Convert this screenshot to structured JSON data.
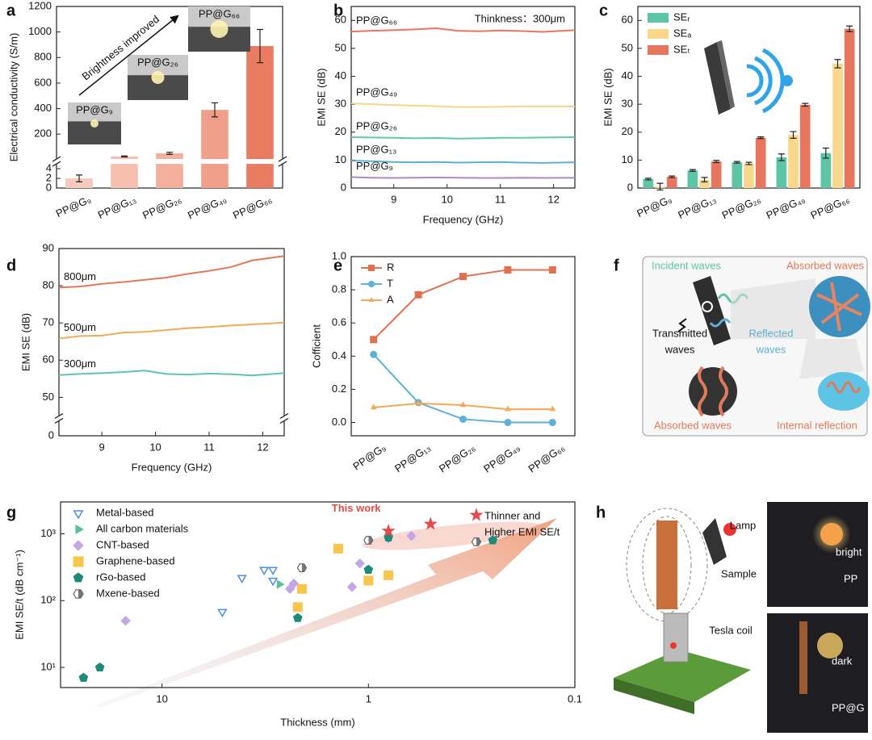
{
  "chart_data": [
    {
      "type": "bar",
      "panel": "a",
      "ylabel": "Electrical conductivity (S/m)",
      "categories": [
        "PP@G₉",
        "PP@G₁₃",
        "PP@G₂₆",
        "PP@G₄₉",
        "PP@G₆₆"
      ],
      "values": [
        2,
        25,
        50,
        390,
        890
      ],
      "errors": [
        0.7,
        4,
        8,
        55,
        130
      ],
      "colors": [
        "#f8cabd",
        "#f6bfae",
        "#f3b19d",
        "#f0a08a",
        "#e97b60"
      ],
      "y_segments": [
        {
          "lim": [
            0,
            5
          ],
          "ticks": [
            0,
            2,
            4
          ]
        },
        {
          "lim": [
            5,
            1200
          ],
          "ticks": [
            200,
            400,
            600,
            800,
            1000,
            1200
          ]
        }
      ],
      "xtick_rotation": 25,
      "insets": [
        "PP@G₉",
        "PP@G₂₆",
        "PP@G₆₆"
      ],
      "annotation": "Brightness improved"
    },
    {
      "type": "line",
      "panel": "b",
      "xlabel": "Frequency (GHz)",
      "ylabel": "EMI SE (dB)",
      "annotation": "Thinkness：300μm",
      "x": [
        8.2,
        8.6,
        9.0,
        9.4,
        9.8,
        10.2,
        10.6,
        11.0,
        11.4,
        11.8,
        12.4
      ],
      "xlim": [
        8.2,
        12.4
      ],
      "xticks": [
        9,
        10,
        11,
        12
      ],
      "ylim": [
        0,
        65
      ],
      "yticks": [
        0,
        10,
        20,
        30,
        40,
        50,
        60
      ],
      "line_labels": true,
      "series": [
        {
          "name": "PP@G₆₆",
          "color": "#e8765e",
          "values": [
            56,
            56.3,
            56.5,
            56.8,
            57.2,
            56.3,
            56.1,
            56.4,
            56.2,
            55.9,
            56.5
          ]
        },
        {
          "name": "PP@G₄₉",
          "color": "#f5d58a",
          "values": [
            30.3,
            30,
            29.7,
            29.5,
            29.3,
            29,
            29,
            29.1,
            29.2,
            29.2,
            29.2
          ]
        },
        {
          "name": "PP@G₂₆",
          "color": "#62c6a9",
          "values": [
            18.2,
            18.1,
            18,
            17.8,
            17.9,
            17.7,
            17.8,
            18,
            18,
            18.1,
            18.2
          ]
        },
        {
          "name": "PP@G₁₃",
          "color": "#5eaed6",
          "values": [
            9.8,
            9.6,
            9.3,
            9.2,
            9.3,
            9.1,
            9.2,
            9.3,
            9.1,
            9,
            9.2
          ]
        },
        {
          "name": "PP@G₉",
          "color": "#a88ad2",
          "values": [
            3.9,
            3.7,
            3.6,
            3.7,
            3.8,
            3.7,
            3.6,
            3.6,
            3.7,
            3.6,
            3.7
          ]
        }
      ]
    },
    {
      "type": "bar",
      "panel": "c",
      "ylabel": "EMI SE (dB)",
      "categories": [
        "PP@G₉",
        "PP@G₁₃",
        "PP@G₂₆",
        "PP@G₄₉",
        "PP@G₆₆"
      ],
      "ylim": [
        0,
        65
      ],
      "yticks": [
        0,
        10,
        20,
        30,
        40,
        50,
        60
      ],
      "legend": "upper left",
      "xtick_rotation": 25,
      "series": [
        {
          "name": "SEᵣ",
          "color": "#5ec4a6",
          "values": [
            3.2,
            6.3,
            9.2,
            11,
            12.5
          ],
          "errors": [
            0.3,
            0.3,
            0.3,
            1.2,
            1.8
          ]
        },
        {
          "name": "SEₐ",
          "color": "#f8d88a",
          "values": [
            0.5,
            3,
            8.8,
            19,
            44.5
          ],
          "errors": [
            1.2,
            0.8,
            0.4,
            1.2,
            1.5
          ]
        },
        {
          "name": "SEₜ",
          "color": "#e8765e",
          "values": [
            4,
            9.5,
            18,
            29.8,
            57
          ],
          "errors": [
            0.3,
            0.4,
            0.3,
            0.5,
            1
          ]
        }
      ]
    },
    {
      "type": "line",
      "panel": "d",
      "xlabel": "Frequency (GHz)",
      "ylabel": "EMI SE (dB)",
      "x": [
        8.2,
        8.6,
        9.0,
        9.4,
        9.8,
        10.2,
        10.6,
        11.0,
        11.4,
        11.8,
        12.4
      ],
      "xlim": [
        8.2,
        12.4
      ],
      "xticks": [
        9,
        10,
        11,
        12
      ],
      "y_segments": [
        {
          "lim": [
            0,
            5
          ],
          "ticks": [
            0
          ]
        },
        {
          "lim": [
            45,
            90
          ],
          "ticks": [
            50,
            60,
            70,
            80,
            90
          ]
        }
      ],
      "line_labels": true,
      "series": [
        {
          "name": "800μm",
          "color": "#e3775a",
          "values": [
            79.5,
            79.8,
            80.5,
            81,
            81.6,
            82.2,
            83.2,
            84,
            85,
            86.8,
            88
          ]
        },
        {
          "name": "500μm",
          "color": "#f0aa5a",
          "values": [
            65.8,
            66.5,
            66.6,
            67.4,
            67.6,
            68.1,
            68.6,
            68.9,
            69.3,
            69.6,
            70.1
          ]
        },
        {
          "name": "300μm",
          "color": "#5ec4b5",
          "values": [
            56,
            56.3,
            56.5,
            56.8,
            57.2,
            56.3,
            56.1,
            56.4,
            56.2,
            55.9,
            56.5
          ]
        }
      ]
    },
    {
      "type": "line",
      "panel": "e",
      "ylabel": "Cofficient",
      "categories": [
        "PP@G₉",
        "PP@G₁₃",
        "PP@G₂₆",
        "PP@G₄₉",
        "PP@G₆₆"
      ],
      "ylim": [
        -0.08,
        1.0
      ],
      "yticks": [
        {
          "value": 0,
          "label": "0.0"
        },
        0.2,
        0.4,
        0.6,
        0.8,
        {
          "value": 1,
          "label": "1.0"
        }
      ],
      "legend": "upper left",
      "xtick_rotation": 35,
      "series": [
        {
          "name": "R",
          "color": "#e0704f",
          "marker": "square",
          "values": [
            0.5,
            0.77,
            0.88,
            0.92,
            0.92
          ]
        },
        {
          "name": "T",
          "color": "#5eb0d6",
          "marker": "circle",
          "values": [
            0.41,
            0.12,
            0.02,
            0,
            0
          ]
        },
        {
          "name": "A",
          "color": "#f2a95a",
          "marker": "triangle-up",
          "values": [
            0.09,
            0.115,
            0.105,
            0.08,
            0.08
          ]
        }
      ]
    },
    {
      "type": "scatter",
      "panel": "g",
      "xlabel": "Thickness (mm)",
      "ylabel": "EMI SE/t (dB cm⁻¹)",
      "xlog": true,
      "ylog": true,
      "xlim": [
        31,
        0.1
      ],
      "xticks": [
        10,
        1,
        0.1
      ],
      "ylim": [
        5,
        3000
      ],
      "yticks": [
        {
          "value": 10,
          "label": "10¹"
        },
        {
          "value": 100,
          "label": "10²"
        },
        {
          "value": 1000,
          "label": "10³"
        }
      ],
      "legend": "upper left",
      "series": [
        {
          "name": "Metal-based",
          "color": "#4a8fe0",
          "marker": "triangle-down",
          "marker_fill": "open",
          "x": [
            4.1,
            5.1,
            3.2,
            2.9,
            2.9,
            0.8
          ],
          "values": [
            220,
            68,
            290,
            290,
            200,
            880
          ]
        },
        {
          "name": "All carbon materials",
          "color": "#5dbf9a",
          "marker": "triangle-right",
          "marker_fill": "solid",
          "x": [
            2.7
          ],
          "values": [
            175
          ]
        },
        {
          "name": "CNT-based",
          "color": "#c2a6e6",
          "marker": "diamond",
          "marker_fill": "solid",
          "x": [
            15,
            2.4,
            2.3,
            1.2,
            1.1,
            0.62
          ],
          "values": [
            50,
            150,
            180,
            160,
            360,
            930
          ]
        },
        {
          "name": "Graphene-based",
          "color": "#f7c64a",
          "marker": "square",
          "marker_fill": "solid",
          "x": [
            2.2,
            2.1,
            1.4,
            1.0,
            0.8
          ],
          "values": [
            80,
            150,
            600,
            200,
            240
          ]
        },
        {
          "name": "rGo-based",
          "color": "#1d8a7a",
          "marker": "pentagon",
          "marker_fill": "solid",
          "x": [
            24,
            20,
            2.2,
            1.0,
            0.8,
            0.25
          ],
          "values": [
            7,
            10,
            55,
            290,
            880,
            800
          ]
        },
        {
          "name": "Mxene-based",
          "color": "#666666",
          "marker": "hexagon",
          "marker_fill": "half",
          "x": [
            2.1,
            1.0,
            0.3
          ],
          "values": [
            310,
            800,
            760
          ]
        }
      ],
      "highlight": {
        "name": "This work",
        "color": "#e84a4a",
        "x": [
          0.8,
          0.5,
          0.3
        ],
        "values": [
          1100,
          1400,
          1900
        ]
      },
      "annotation": [
        "Thinner and",
        "Higher EMI SE/t"
      ]
    }
  ],
  "schematic_f": {
    "panel": "f",
    "labels": [
      "Incident waves",
      "Absorbed waves",
      "Transmitted",
      "waves",
      "Reflected",
      "waves",
      "Absorbed waves",
      "Internal reflection"
    ]
  },
  "schematic_h": {
    "panel": "h",
    "labels": [
      "Lamp",
      "Sample",
      "Tesla coil",
      "bright",
      "PP",
      "dark",
      "PP@G"
    ]
  }
}
